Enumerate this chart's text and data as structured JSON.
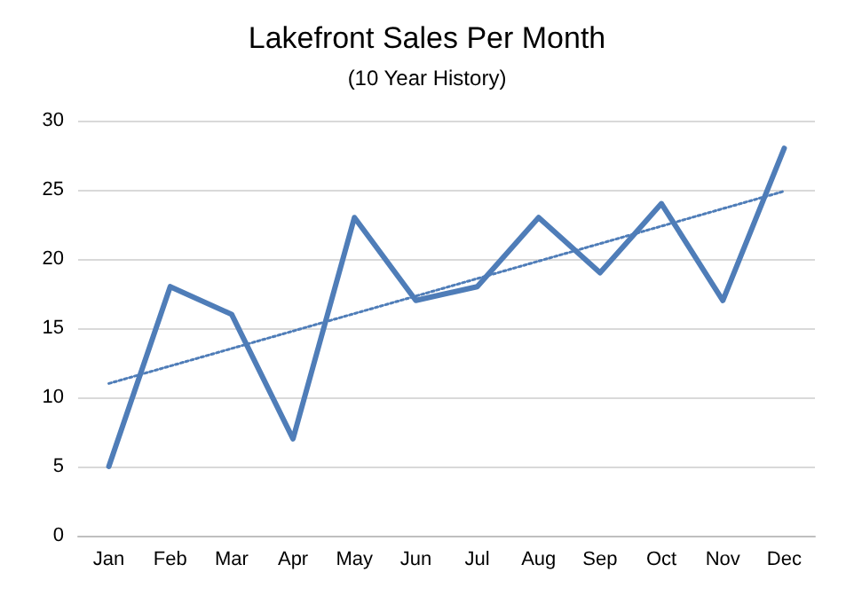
{
  "chart_data": {
    "type": "line",
    "title": "Lakefront Sales Per Month",
    "subtitle": "(10 Year History)",
    "categories": [
      "Jan",
      "Feb",
      "Mar",
      "Apr",
      "May",
      "Jun",
      "Jul",
      "Aug",
      "Sep",
      "Oct",
      "Nov",
      "Dec"
    ],
    "series": [
      {
        "color": "#4f7db8",
        "values": [
          5,
          18,
          16,
          7,
          23,
          17,
          18,
          23,
          19,
          24,
          17,
          28
        ],
        "line_style": "solid"
      },
      {
        "type": "line",
        "color": "#4f7db8",
        "x": [
          "Jan",
          "Dec"
        ],
        "values": [
          11,
          24.9
        ],
        "line_style": "dotted"
      }
    ],
    "ylim": [
      0,
      30
    ],
    "yticks": [
      0,
      5,
      10,
      15,
      20,
      25,
      30
    ],
    "grid": "y",
    "marker": "none"
  }
}
